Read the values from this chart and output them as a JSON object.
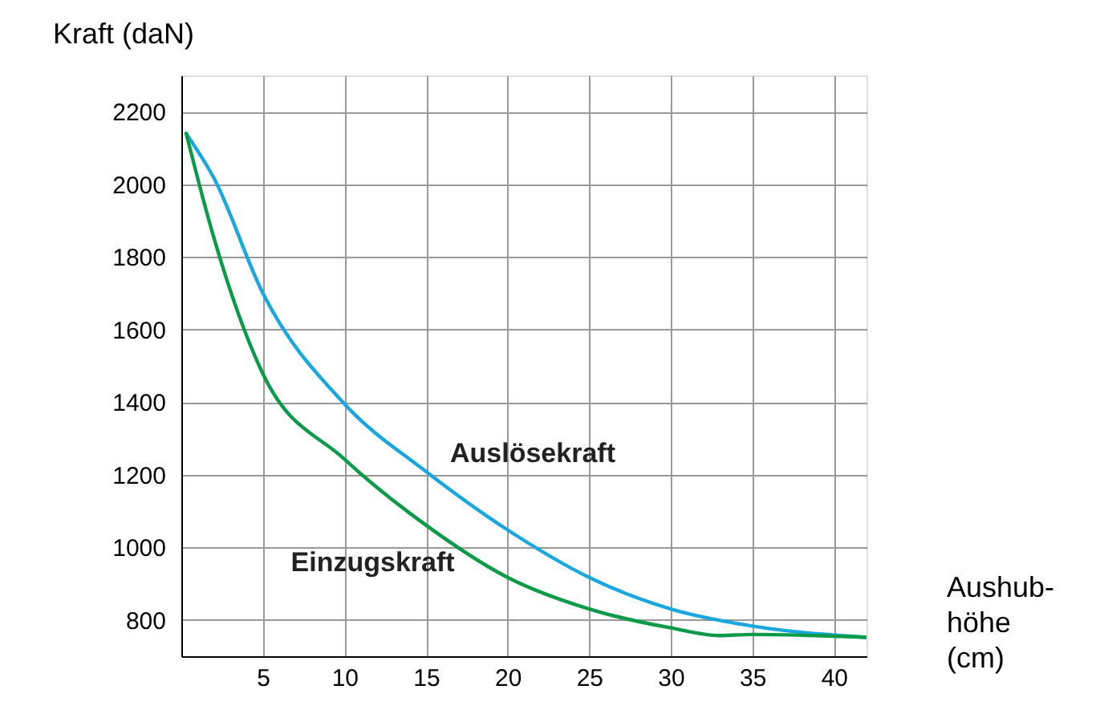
{
  "chart_data": {
    "type": "line",
    "xlabel": "Aushub-höhe (cm)",
    "ylabel": "Kraft (daN)",
    "xlim": [
      0,
      42
    ],
    "xticks": [
      5,
      10,
      15,
      20,
      25,
      30,
      35,
      40
    ],
    "ylim": [
      700,
      2300
    ],
    "yticks": [
      800,
      1000,
      1200,
      1400,
      1600,
      1800,
      2000,
      2200
    ],
    "grid": true,
    "marker": "none",
    "line_style": "solid",
    "series": [
      {
        "name": "Auslösekraft",
        "color": "#1aa7e0",
        "x": [
          0.3,
          2,
          5,
          10,
          15,
          20,
          25,
          30,
          35,
          42
        ],
        "values": [
          2140,
          2017,
          1700,
          1395,
          1209,
          1048,
          917,
          830,
          783,
          752
        ]
      },
      {
        "name": "Einzugskraft",
        "color": "#0a9a48",
        "x": [
          0.3,
          2,
          5,
          10,
          15,
          20,
          25,
          30,
          33,
          35,
          42
        ],
        "values": [
          2140,
          1852,
          1478,
          1243,
          1061,
          917,
          830,
          778,
          757,
          760,
          752
        ]
      }
    ]
  }
}
